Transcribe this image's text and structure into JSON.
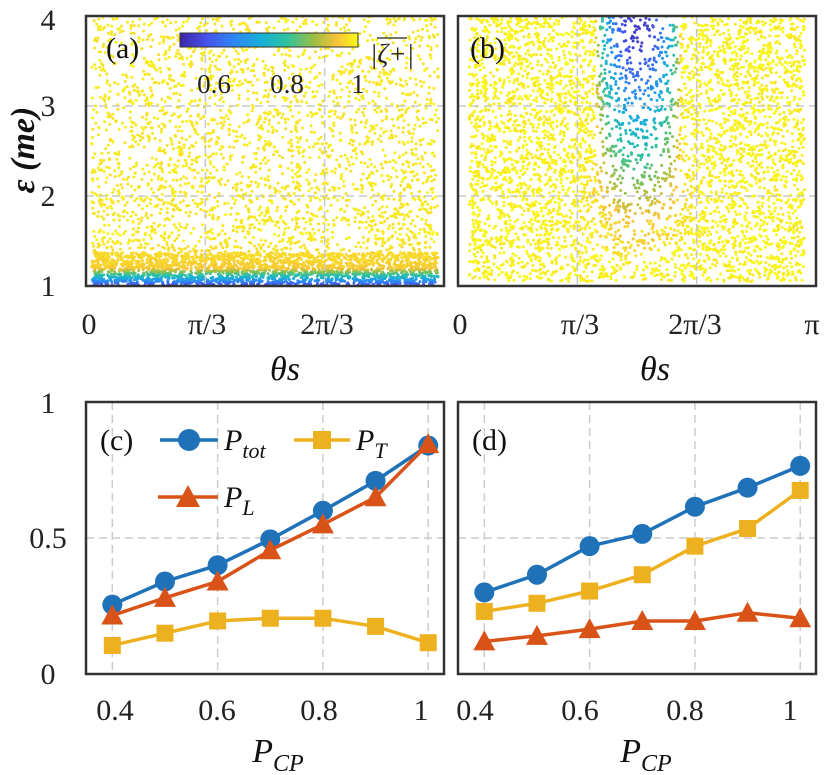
{
  "chart_data": [
    {
      "panel": "(a)",
      "type": "scatter",
      "xlabel": "θs",
      "ylabel": "ε (me)",
      "xlim": [
        0,
        3.14159
      ],
      "ylim": [
        1,
        4
      ],
      "xtick_labels": [
        "0",
        "π/3",
        "2π/3"
      ],
      "ytick_labels": [
        "1",
        "2",
        "3",
        "4"
      ],
      "colorbar": {
        "label": "|ζ+|",
        "range": [
          0.5,
          1.0
        ],
        "tick_labels": [
          "0.6",
          "0.8",
          "1"
        ]
      },
      "description_values": {
        "low_polarization_band_epsilon": [
          1.0,
          1.2
        ],
        "bulk_polarization": 0.98
      }
    },
    {
      "panel": "(b)",
      "type": "scatter",
      "xlabel": "θs",
      "xlim": [
        0,
        3.14159
      ],
      "ylim": [
        1,
        4
      ],
      "xtick_labels": [
        "0",
        "π/3",
        "2π/3",
        "π"
      ],
      "description_values": {
        "low_polarization_region_theta": [
          1.2,
          1.95
        ],
        "low_polarization_region_epsilon": [
          2.0,
          4.0
        ]
      }
    },
    {
      "panel": "(c)",
      "type": "line",
      "xlabel": "PCP",
      "ylabel": "",
      "xlim": [
        0.35,
        1.03
      ],
      "ylim": [
        0,
        1
      ],
      "xtick_labels": [
        "0.4",
        "0.6",
        "0.8",
        "1"
      ],
      "ytick_labels": [
        "0",
        "0.5",
        "1"
      ],
      "x": [
        0.4,
        0.5,
        0.6,
        0.7,
        0.8,
        0.9,
        1.0
      ],
      "series": [
        {
          "name": "Ptot",
          "values": [
            0.255,
            0.34,
            0.4,
            0.495,
            0.6,
            0.71,
            0.84
          ]
        },
        {
          "name": "PT",
          "values": [
            0.105,
            0.15,
            0.195,
            0.205,
            0.205,
            0.175,
            0.115
          ]
        },
        {
          "name": "PL",
          "values": [
            0.215,
            0.28,
            0.34,
            0.455,
            0.55,
            0.65,
            0.845
          ]
        }
      ]
    },
    {
      "panel": "(d)",
      "type": "line",
      "xlabel": "PCP",
      "xlim": [
        0.35,
        1.03
      ],
      "ylim": [
        0,
        1
      ],
      "xtick_labels": [
        "0.4",
        "0.6",
        "0.8",
        "1"
      ],
      "x": [
        0.4,
        0.5,
        0.6,
        0.7,
        0.8,
        0.9,
        1.0
      ],
      "series": [
        {
          "name": "Ptot",
          "values": [
            0.3,
            0.365,
            0.47,
            0.515,
            0.615,
            0.685,
            0.765
          ]
        },
        {
          "name": "PT",
          "values": [
            0.23,
            0.26,
            0.305,
            0.365,
            0.47,
            0.535,
            0.675
          ]
        },
        {
          "name": "PL",
          "values": [
            0.12,
            0.14,
            0.165,
            0.195,
            0.195,
            0.225,
            0.205
          ]
        }
      ]
    }
  ],
  "legend": {
    "tot": {
      "main": "P",
      "sub": "tot"
    },
    "T": {
      "main": "P",
      "sub": "T"
    },
    "L": {
      "main": "P",
      "sub": "L"
    }
  },
  "colors": {
    "tot": "#1f72b8",
    "T": "#edb120",
    "L": "#d95319",
    "grid": "#c8c8c8"
  }
}
